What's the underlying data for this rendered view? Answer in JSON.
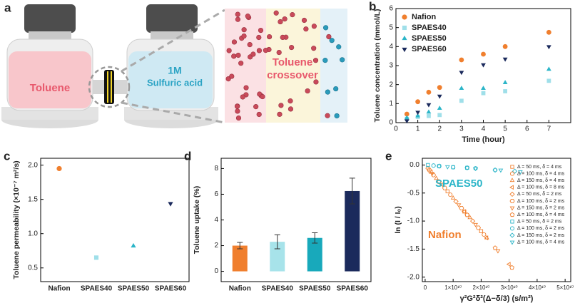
{
  "illustration": {
    "label": "a",
    "left_liquid": "Toluene",
    "right_liquid": [
      "1M",
      "Sulfuric acid"
    ],
    "zoom_text": [
      "Toluene",
      "crossover"
    ]
  },
  "chart_data": [
    {
      "type": "scatter",
      "panel_label": "b",
      "xlabel": "Time (hour)",
      "ylabel": "Toluene concentration (mmol/L)",
      "x": [
        0.5,
        1,
        1.5,
        2,
        3,
        4,
        5,
        7
      ],
      "xlim": [
        0,
        8
      ],
      "xticks": [
        0,
        1,
        2,
        3,
        4,
        5,
        6,
        7
      ],
      "ylim": [
        0,
        6
      ],
      "yticks": [
        0,
        1,
        2,
        3,
        4,
        5,
        6
      ],
      "legend": "upper left",
      "series": [
        {
          "name": "Nafion",
          "color": "#f07f2e",
          "marker": "circle",
          "values": [
            0.45,
            1.1,
            1.6,
            1.85,
            3.3,
            3.6,
            4.0,
            4.75
          ]
        },
        {
          "name": "SPAES40",
          "color": "#9fdfe9",
          "marker": "square",
          "values": [
            0.2,
            0.3,
            0.35,
            0.4,
            1.15,
            1.55,
            1.65,
            2.2
          ]
        },
        {
          "name": "SPAES50",
          "color": "#2bb5c8",
          "marker": "triangle",
          "values": [
            0.25,
            0.35,
            0.55,
            0.75,
            1.8,
            1.8,
            2.1,
            2.8
          ]
        },
        {
          "name": "SPAES60",
          "color": "#1b2a5c",
          "marker": "triangle-down",
          "values": [
            0.1,
            0.55,
            0.95,
            1.4,
            2.65,
            3.05,
            3.35,
            4.0
          ]
        }
      ]
    },
    {
      "type": "scatter",
      "panel_label": "c",
      "ylabel": "Toluene permeability (×10⁻⁷ m²/s)",
      "categories": [
        "Nafion",
        "SPAES40",
        "SPAES50",
        "SPAES60"
      ],
      "values": [
        1.95,
        0.65,
        0.82,
        1.44
      ],
      "colors": [
        "#f07f2e",
        "#9fdfe9",
        "#2bb5c8",
        "#1b2a5c"
      ],
      "markers": [
        "circle",
        "square",
        "triangle",
        "triangle-down"
      ],
      "ylim": [
        0.3,
        2.1
      ],
      "yticks": [
        0.5,
        {
          "value": 1,
          "label": "1.0"
        },
        1.5,
        {
          "value": 2,
          "label": "2.0"
        }
      ]
    },
    {
      "type": "bar",
      "panel_label": "d",
      "ylabel": "Toluene uptake (%)",
      "categories": [
        "Nafion",
        "SPAES40",
        "SPAES50",
        "SPAES60"
      ],
      "values": [
        2.0,
        2.3,
        2.6,
        6.25
      ],
      "errors": [
        0.25,
        0.55,
        0.4,
        1.0
      ],
      "colors": [
        "#f07f2e",
        "#a7e3ea",
        "#18a9bb",
        "#1b2a5c"
      ],
      "ylim": [
        -0.8,
        8.8
      ],
      "yticks": [
        0,
        2,
        4,
        6,
        8
      ]
    },
    {
      "type": "scatter",
      "panel_label": "e",
      "xlabel": "γ²G²δ²(Δ−δ/3) (s/m²)",
      "ylabel": "ln (I / I₀)",
      "xlim": [
        -1000000000.0,
        52000000000.0
      ],
      "xticks": [
        0,
        {
          "value": 10000000000.0,
          "label": "1×10¹⁰"
        },
        {
          "value": 20000000000.0,
          "label": "2×10¹⁰"
        },
        {
          "value": 30000000000.0,
          "label": "3×10¹⁰"
        },
        {
          "value": 40000000000.0,
          "label": "4×10¹⁰"
        },
        {
          "value": 50000000000.0,
          "label": "5×10¹⁰"
        }
      ],
      "ylim": [
        -2.08,
        0.12
      ],
      "yticks": [
        {
          "value": 0,
          "label": "0.0"
        },
        -0.5,
        {
          "value": -1,
          "label": "-1.0"
        },
        -1.5,
        {
          "value": -2,
          "label": "-2.0"
        }
      ],
      "legend": "upper right",
      "hollow": true,
      "annotations": [
        {
          "text": "SPAES50",
          "color": "#2bb5c8"
        },
        {
          "text": "Nafion",
          "color": "#f07f2e"
        }
      ],
      "series": [
        {
          "name": "Δ = 50 ms, δ = 4 ms",
          "color": "#f07f2e",
          "marker": "square",
          "x": [
            2000000000.0,
            8000000000.0,
            14000000000.0,
            20000000000.0
          ],
          "values": [
            -0.12,
            -0.47,
            -0.83,
            -1.18
          ]
        },
        {
          "name": "Δ = 100 ms, δ = 4 ms",
          "color": "#f07f2e",
          "marker": "circle",
          "x": [
            3000000000.0,
            9000000000.0,
            15000000000.0,
            21000000000.0
          ],
          "values": [
            -0.18,
            -0.53,
            -0.89,
            -1.24
          ]
        },
        {
          "name": "Δ = 150 ms, δ = 4 ms",
          "color": "#f07f2e",
          "marker": "triangle",
          "x": [
            4000000000.0,
            10000000000.0,
            16000000000.0,
            22000000000.0
          ],
          "values": [
            -0.24,
            -0.59,
            -0.94,
            -1.3
          ]
        },
        {
          "name": "Δ = 100 ms, δ = 8 ms",
          "color": "#f07f2e",
          "marker": "triangle-left",
          "x": [
            6000000000.0,
            14000000000.0,
            22000000000.0,
            30000000000.0
          ],
          "values": [
            -0.35,
            -0.83,
            -1.3,
            -1.77
          ]
        },
        {
          "name": "Δ = 50 ms, δ = 2 ms",
          "color": "#f07f2e",
          "marker": "diamond",
          "x": [
            1000000000.0,
            5000000000.0,
            11000000000.0,
            17000000000.0
          ],
          "values": [
            -0.06,
            -0.3,
            -0.65,
            -1.0
          ]
        },
        {
          "name": "Δ = 100 ms, δ = 2 ms",
          "color": "#f07f2e",
          "marker": "hexagon",
          "x": [
            1500000000.0,
            7000000000.0,
            13000000000.0,
            19000000000.0
          ],
          "values": [
            -0.09,
            -0.41,
            -0.77,
            -1.12
          ]
        },
        {
          "name": "Δ = 150 ms, δ = 2 ms",
          "color": "#f07f2e",
          "marker": "triangle-down",
          "x": [
            2500000000.0,
            12000000000.0,
            18000000000.0,
            26000000000.0
          ],
          "values": [
            -0.15,
            -0.71,
            -1.06,
            -1.53
          ]
        },
        {
          "name": "Δ = 100 ms, δ = 4 ms",
          "color": "#f07f2e",
          "marker": "pentagon",
          "x": [
            5000000000.0,
            15000000000.0,
            25000000000.0,
            31000000000.0
          ],
          "values": [
            -0.3,
            -0.89,
            -1.48,
            -1.83
          ]
        },
        {
          "name": "Δ = 50 ms, δ = 2 ms",
          "color": "#2bb5c8",
          "marker": "square",
          "x": [
            1000000000.0,
            5000000000.0,
            10000000000.0,
            15000000000.0
          ],
          "values": [
            0.0,
            -0.02,
            -0.04,
            -0.05
          ]
        },
        {
          "name": "Δ = 100 ms, δ = 2 ms",
          "color": "#2bb5c8",
          "marker": "circle",
          "x": [
            3000000000.0,
            10000000000.0,
            18000000000.0,
            25000000000.0
          ],
          "values": [
            -0.01,
            -0.04,
            -0.06,
            -0.09
          ]
        },
        {
          "name": "Δ = 150 ms, δ = 2 ms",
          "color": "#2bb5c8",
          "marker": "diamond",
          "x": [
            5000000000.0,
            15000000000.0,
            25000000000.0,
            32000000000.0
          ],
          "values": [
            -0.02,
            -0.05,
            -0.09,
            -0.11
          ]
        },
        {
          "name": "Δ = 100 ms, δ = 4 ms",
          "color": "#2bb5c8",
          "marker": "triangle-down",
          "x": [
            8000000000.0,
            18000000000.0,
            27000000000.0,
            34000000000.0
          ],
          "values": [
            -0.03,
            -0.06,
            -0.09,
            -0.12
          ]
        }
      ]
    }
  ]
}
